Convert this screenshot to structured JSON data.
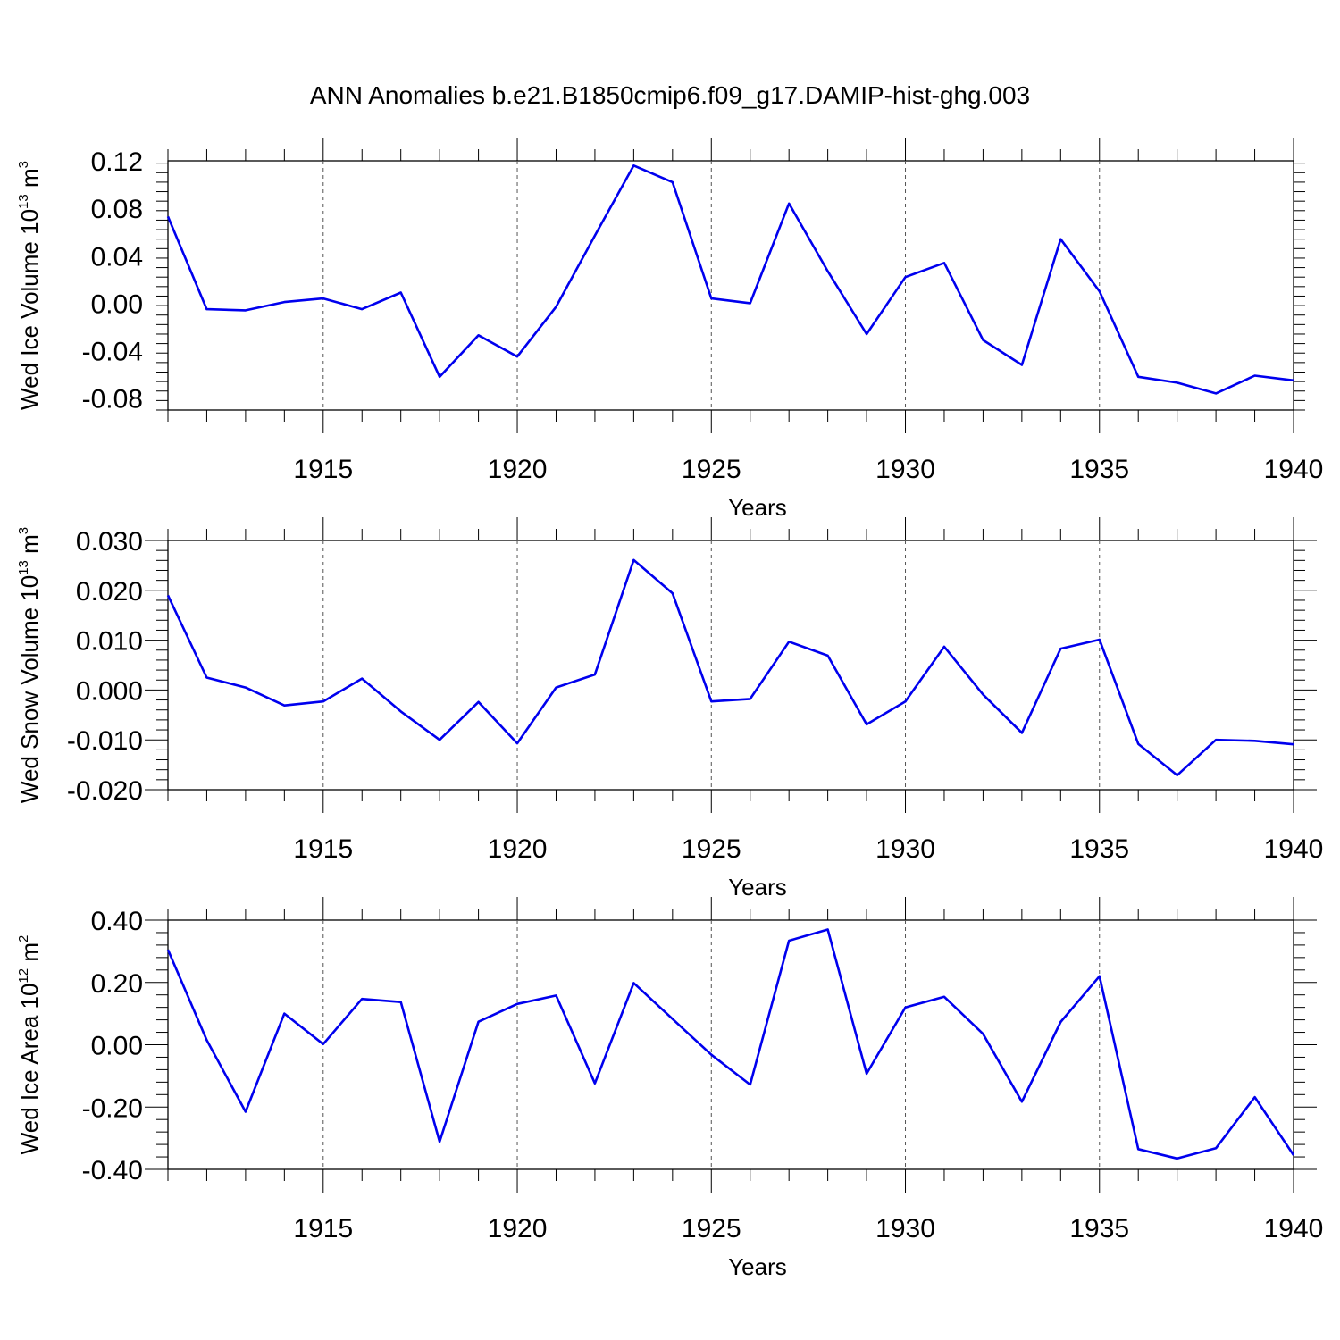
{
  "title": "ANN Anomalies b.e21.B1850cmip6.f09_g17.DAMIP-hist-ghg.003",
  "line_color": "#0000ee",
  "chart_data": [
    {
      "type": "line",
      "xlabel": "Years",
      "ylabel": {
        "text": "Wed Ice Volume 10",
        "sup1": "13",
        "mid": " m",
        "sup2": "3"
      },
      "xlim": [
        1911,
        1940
      ],
      "ylim": [
        -0.09,
        0.12
      ],
      "yticks": [
        0.12,
        0.08,
        0.04,
        0.0,
        -0.04,
        -0.08
      ],
      "ytick_labels": [
        "0.12",
        "0.08",
        "0.04",
        "0.00",
        "-0.04",
        "-0.08"
      ],
      "xticks": [
        1915,
        1920,
        1925,
        1930,
        1935,
        1940
      ],
      "xtick_labels": [
        "1915",
        "1920",
        "1925",
        "1930",
        "1935",
        "1940"
      ],
      "x": [
        1911,
        1912,
        1913,
        1914,
        1915,
        1916,
        1917,
        1918,
        1919,
        1920,
        1921,
        1922,
        1923,
        1924,
        1925,
        1926,
        1927,
        1928,
        1929,
        1930,
        1931,
        1932,
        1933,
        1934,
        1935,
        1936,
        1937,
        1938,
        1939,
        1940
      ],
      "values": [
        0.073,
        -0.005,
        -0.006,
        0.001,
        0.004,
        -0.005,
        0.009,
        -0.062,
        -0.027,
        -0.045,
        -0.003,
        0.057,
        0.116,
        0.102,
        0.004,
        0.0,
        0.084,
        0.027,
        -0.026,
        0.022,
        0.034,
        -0.031,
        -0.052,
        0.054,
        0.01,
        -0.062,
        -0.067,
        -0.076,
        -0.061,
        -0.065
      ]
    },
    {
      "type": "line",
      "xlabel": "Years",
      "ylabel": {
        "text": "Wed Snow Volume 10",
        "sup1": "13",
        "mid": " m",
        "sup2": "3"
      },
      "xlim": [
        1911,
        1940
      ],
      "ylim": [
        -0.02,
        0.03
      ],
      "yticks": [
        0.03,
        0.02,
        0.01,
        0.0,
        -0.01,
        -0.02
      ],
      "ytick_labels": [
        "0.030",
        "0.020",
        "0.010",
        "0.000",
        "-0.010",
        "-0.020"
      ],
      "xticks": [
        1915,
        1920,
        1925,
        1930,
        1935,
        1940
      ],
      "xtick_labels": [
        "1915",
        "1920",
        "1925",
        "1930",
        "1935",
        "1940"
      ],
      "x": [
        1911,
        1912,
        1913,
        1914,
        1915,
        1916,
        1917,
        1918,
        1919,
        1920,
        1921,
        1922,
        1923,
        1924,
        1925,
        1926,
        1927,
        1928,
        1929,
        1930,
        1931,
        1932,
        1933,
        1934,
        1935,
        1936,
        1937,
        1938,
        1939,
        1940
      ],
      "values": [
        0.019,
        0.0025,
        0.0005,
        -0.0031,
        -0.0023,
        0.0023,
        -0.0043,
        -0.01,
        -0.0024,
        -0.0107,
        0.0005,
        0.0031,
        0.0261,
        0.0194,
        -0.0023,
        -0.0018,
        0.0097,
        0.0069,
        -0.0069,
        -0.0023,
        0.0087,
        -0.0009,
        -0.0086,
        0.0083,
        0.0101,
        -0.0108,
        -0.0171,
        -0.01,
        -0.0102,
        -0.0109
      ]
    },
    {
      "type": "line",
      "xlabel": "Years",
      "ylabel": {
        "text": "Wed Ice Area 10",
        "sup1": "12",
        "mid": " m",
        "sup2": "2"
      },
      "xlim": [
        1911,
        1940
      ],
      "ylim": [
        -0.4,
        0.4
      ],
      "yticks": [
        0.4,
        0.2,
        0.0,
        -0.2,
        -0.4
      ],
      "ytick_labels": [
        "0.40",
        "0.20",
        "0.00",
        "-0.20",
        "-0.40"
      ],
      "xticks": [
        1915,
        1920,
        1925,
        1930,
        1935,
        1940
      ],
      "xtick_labels": [
        "1915",
        "1920",
        "1925",
        "1930",
        "1935",
        "1940"
      ],
      "x": [
        1911,
        1912,
        1913,
        1914,
        1915,
        1916,
        1917,
        1918,
        1919,
        1920,
        1921,
        1922,
        1923,
        1924,
        1925,
        1926,
        1927,
        1928,
        1929,
        1930,
        1931,
        1932,
        1933,
        1934,
        1935,
        1936,
        1937,
        1938,
        1939,
        1940
      ],
      "values": [
        0.305,
        0.015,
        -0.215,
        0.1,
        0.002,
        0.147,
        0.137,
        -0.311,
        0.074,
        0.131,
        0.158,
        -0.124,
        0.198,
        0.083,
        -0.032,
        -0.128,
        0.334,
        0.37,
        -0.093,
        0.12,
        0.154,
        0.035,
        -0.183,
        0.073,
        0.22,
        -0.335,
        -0.365,
        -0.332,
        -0.168,
        -0.354
      ]
    }
  ]
}
